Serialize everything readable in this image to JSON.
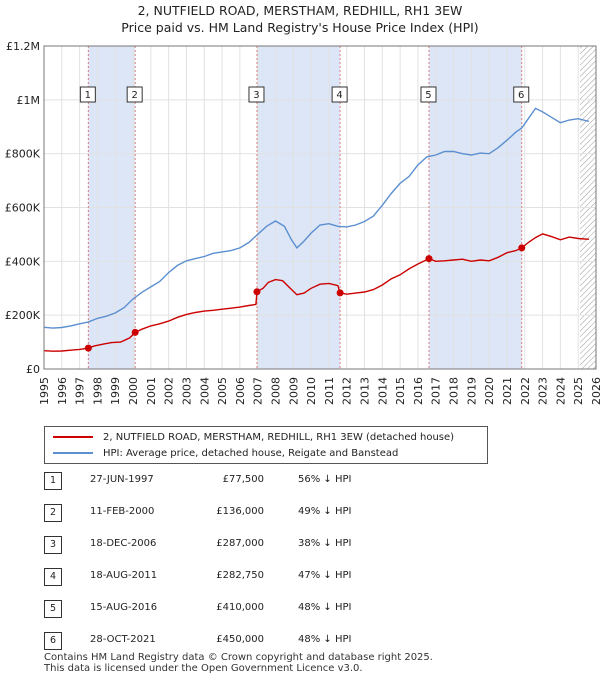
{
  "title_line1": "2, NUTFIELD ROAD, MERSTHAM, REDHILL, RH1 3EW",
  "title_line2": "Price paid vs. HM Land Registry's House Price Index (HPI)",
  "colors": {
    "property": "#cc0000",
    "hpi": "#5b8fd0",
    "shade": "#dce6f6",
    "marker_line": "#d9807f"
  },
  "chart_data": {
    "type": "line",
    "xlim": [
      1995,
      2026
    ],
    "ylim": [
      0,
      1200000
    ],
    "yticks": [
      {
        "v": 0,
        "label": "£0"
      },
      {
        "v": 200000,
        "label": "£200K"
      },
      {
        "v": 400000,
        "label": "£400K"
      },
      {
        "v": 600000,
        "label": "£600K"
      },
      {
        "v": 800000,
        "label": "£800K"
      },
      {
        "v": 1000000,
        "label": "£1M"
      },
      {
        "v": 1200000,
        "label": "£1.2M"
      }
    ],
    "xticks": [
      1995,
      1996,
      1997,
      1998,
      1999,
      2000,
      2001,
      2002,
      2003,
      2004,
      2005,
      2006,
      2007,
      2008,
      2009,
      2010,
      2011,
      2012,
      2013,
      2014,
      2015,
      2016,
      2017,
      2018,
      2019,
      2020,
      2021,
      2022,
      2023,
      2024,
      2025,
      2026
    ],
    "shaded_periods": [
      [
        1997.49,
        2000.12
      ],
      [
        2006.96,
        2011.63
      ],
      [
        2016.62,
        2021.83
      ]
    ],
    "hatch_from": 2025.1,
    "series": [
      {
        "name": "2, NUTFIELD ROAD, MERSTHAM, REDHILL, RH1 3EW (detached house)",
        "points": [
          [
            1995.0,
            68000
          ],
          [
            1995.5,
            66000
          ],
          [
            1996.0,
            67000
          ],
          [
            1996.5,
            70000
          ],
          [
            1997.0,
            73000
          ],
          [
            1997.49,
            77500
          ],
          [
            1997.8,
            85000
          ],
          [
            1998.3,
            92000
          ],
          [
            1998.8,
            98000
          ],
          [
            1999.3,
            100000
          ],
          [
            1999.8,
            115000
          ],
          [
            2000.12,
            136000
          ],
          [
            2000.5,
            148000
          ],
          [
            2001.0,
            160000
          ],
          [
            2001.5,
            168000
          ],
          [
            2002.0,
            178000
          ],
          [
            2002.5,
            192000
          ],
          [
            2003.0,
            203000
          ],
          [
            2003.5,
            210000
          ],
          [
            2004.0,
            215000
          ],
          [
            2004.5,
            218000
          ],
          [
            2005.0,
            222000
          ],
          [
            2005.5,
            226000
          ],
          [
            2006.0,
            230000
          ],
          [
            2006.5,
            236000
          ],
          [
            2006.9,
            240000
          ],
          [
            2006.96,
            287000
          ],
          [
            2007.3,
            300000
          ],
          [
            2007.6,
            322000
          ],
          [
            2008.0,
            332000
          ],
          [
            2008.4,
            328000
          ],
          [
            2008.8,
            302000
          ],
          [
            2009.2,
            276000
          ],
          [
            2009.6,
            282000
          ],
          [
            2010.0,
            300000
          ],
          [
            2010.5,
            315000
          ],
          [
            2011.0,
            318000
          ],
          [
            2011.5,
            310000
          ],
          [
            2011.63,
            282750
          ],
          [
            2012.0,
            278000
          ],
          [
            2012.5,
            282000
          ],
          [
            2013.0,
            286000
          ],
          [
            2013.5,
            295000
          ],
          [
            2014.0,
            312000
          ],
          [
            2014.5,
            335000
          ],
          [
            2015.0,
            350000
          ],
          [
            2015.5,
            372000
          ],
          [
            2016.0,
            390000
          ],
          [
            2016.62,
            410000
          ],
          [
            2017.0,
            400000
          ],
          [
            2017.5,
            402000
          ],
          [
            2018.0,
            405000
          ],
          [
            2018.5,
            408000
          ],
          [
            2019.0,
            400000
          ],
          [
            2019.5,
            405000
          ],
          [
            2020.0,
            402000
          ],
          [
            2020.5,
            415000
          ],
          [
            2021.0,
            432000
          ],
          [
            2021.5,
            440000
          ],
          [
            2021.83,
            450000
          ],
          [
            2022.2,
            470000
          ],
          [
            2022.6,
            488000
          ],
          [
            2023.0,
            502000
          ],
          [
            2023.5,
            492000
          ],
          [
            2024.0,
            480000
          ],
          [
            2024.5,
            490000
          ],
          [
            2025.0,
            485000
          ],
          [
            2025.6,
            482000
          ]
        ]
      },
      {
        "name": "HPI: Average price, detached house, Reigate and Banstead",
        "points": [
          [
            1995.0,
            155000
          ],
          [
            1995.5,
            152000
          ],
          [
            1996.0,
            154000
          ],
          [
            1996.5,
            160000
          ],
          [
            1997.0,
            168000
          ],
          [
            1997.5,
            175000
          ],
          [
            1998.0,
            188000
          ],
          [
            1998.5,
            196000
          ],
          [
            1999.0,
            208000
          ],
          [
            1999.5,
            228000
          ],
          [
            2000.0,
            260000
          ],
          [
            2000.5,
            285000
          ],
          [
            2001.0,
            305000
          ],
          [
            2001.5,
            325000
          ],
          [
            2002.0,
            358000
          ],
          [
            2002.5,
            385000
          ],
          [
            2003.0,
            402000
          ],
          [
            2003.5,
            410000
          ],
          [
            2004.0,
            418000
          ],
          [
            2004.5,
            430000
          ],
          [
            2005.0,
            435000
          ],
          [
            2005.5,
            440000
          ],
          [
            2006.0,
            450000
          ],
          [
            2006.5,
            470000
          ],
          [
            2007.0,
            500000
          ],
          [
            2007.5,
            530000
          ],
          [
            2008.0,
            550000
          ],
          [
            2008.5,
            530000
          ],
          [
            2008.9,
            480000
          ],
          [
            2009.2,
            450000
          ],
          [
            2009.6,
            475000
          ],
          [
            2010.0,
            505000
          ],
          [
            2010.5,
            535000
          ],
          [
            2011.0,
            540000
          ],
          [
            2011.5,
            530000
          ],
          [
            2012.0,
            528000
          ],
          [
            2012.5,
            535000
          ],
          [
            2013.0,
            548000
          ],
          [
            2013.5,
            568000
          ],
          [
            2014.0,
            608000
          ],
          [
            2014.5,
            652000
          ],
          [
            2015.0,
            690000
          ],
          [
            2015.5,
            715000
          ],
          [
            2016.0,
            758000
          ],
          [
            2016.5,
            788000
          ],
          [
            2017.0,
            795000
          ],
          [
            2017.5,
            808000
          ],
          [
            2018.0,
            808000
          ],
          [
            2018.5,
            800000
          ],
          [
            2019.0,
            795000
          ],
          [
            2019.5,
            802000
          ],
          [
            2020.0,
            800000
          ],
          [
            2020.5,
            822000
          ],
          [
            2021.0,
            850000
          ],
          [
            2021.5,
            880000
          ],
          [
            2021.83,
            895000
          ],
          [
            2022.2,
            930000
          ],
          [
            2022.6,
            968000
          ],
          [
            2023.0,
            955000
          ],
          [
            2023.5,
            935000
          ],
          [
            2024.0,
            915000
          ],
          [
            2024.5,
            925000
          ],
          [
            2025.0,
            930000
          ],
          [
            2025.6,
            920000
          ]
        ]
      }
    ],
    "sales": [
      {
        "n": "1",
        "x": 1997.49,
        "y": 77500
      },
      {
        "n": "2",
        "x": 2000.12,
        "y": 136000
      },
      {
        "n": "3",
        "x": 2006.96,
        "y": 287000
      },
      {
        "n": "4",
        "x": 2011.63,
        "y": 282750
      },
      {
        "n": "5",
        "x": 2016.62,
        "y": 410000
      },
      {
        "n": "6",
        "x": 2021.83,
        "y": 450000
      }
    ]
  },
  "legend": {
    "property": "2, NUTFIELD ROAD, MERSTHAM, REDHILL, RH1 3EW (detached house)",
    "hpi": "HPI: Average price, detached house, Reigate and Banstead"
  },
  "transactions": [
    {
      "n": "1",
      "date": "27-JUN-1997",
      "price": "£77,500",
      "hpi": "56% ↓ HPI"
    },
    {
      "n": "2",
      "date": "11-FEB-2000",
      "price": "£136,000",
      "hpi": "49% ↓ HPI"
    },
    {
      "n": "3",
      "date": "18-DEC-2006",
      "price": "£287,000",
      "hpi": "38% ↓ HPI"
    },
    {
      "n": "4",
      "date": "18-AUG-2011",
      "price": "£282,750",
      "hpi": "47% ↓ HPI"
    },
    {
      "n": "5",
      "date": "15-AUG-2016",
      "price": "£410,000",
      "hpi": "48% ↓ HPI"
    },
    {
      "n": "6",
      "date": "28-OCT-2021",
      "price": "£450,000",
      "hpi": "48% ↓ HPI"
    }
  ],
  "footer_line1": "Contains HM Land Registry data © Crown copyright and database right 2025.",
  "footer_line2": "This data is licensed under the Open Government Licence v3.0."
}
